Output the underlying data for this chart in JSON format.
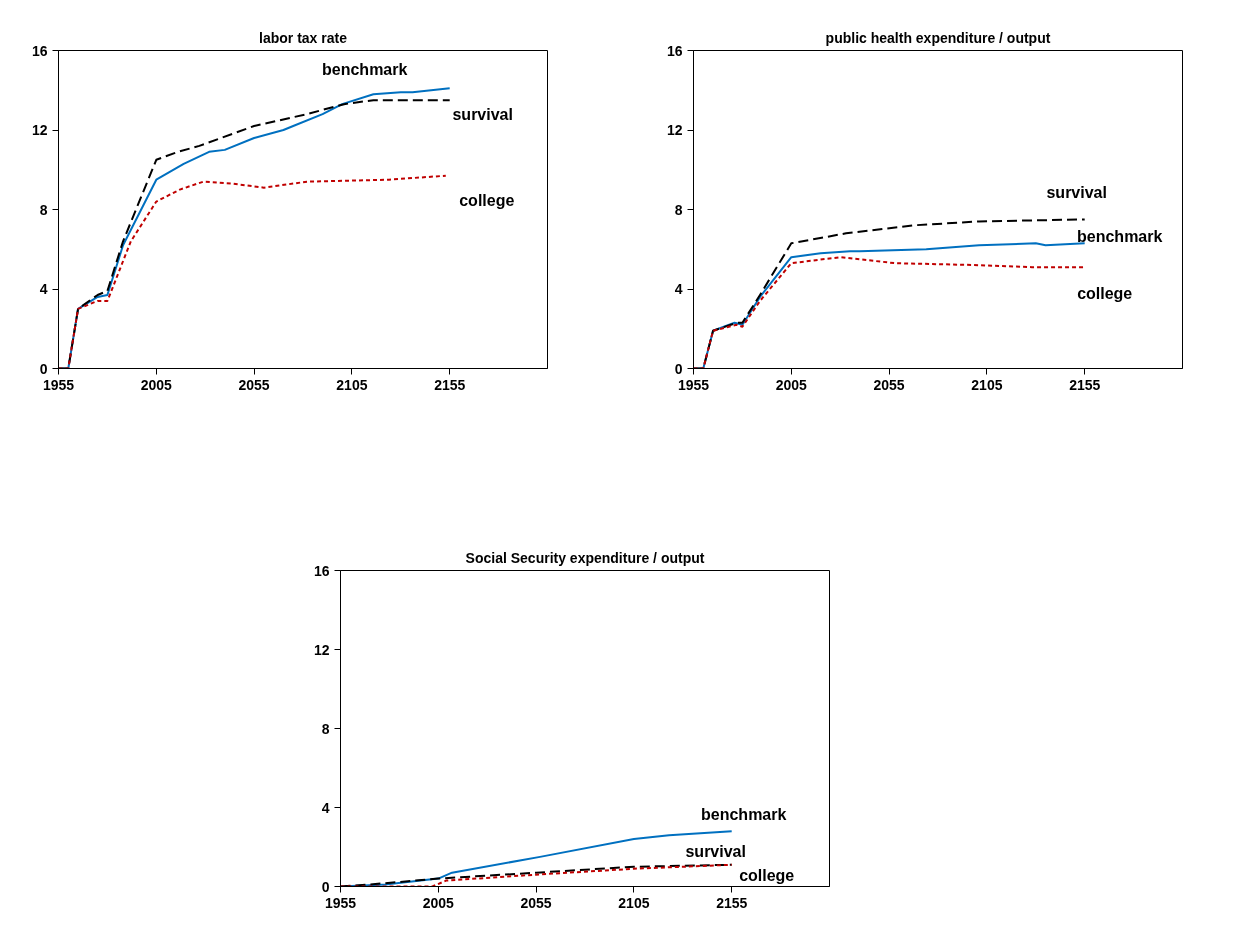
{
  "chart_data": [
    {
      "type": "line",
      "title": "labor tax rate",
      "xlim": [
        1955,
        2205
      ],
      "xticks": [
        1955,
        2005,
        2055,
        2105,
        2155
      ],
      "ylim": [
        0,
        16
      ],
      "yticks": [
        0,
        4,
        8,
        12,
        16
      ],
      "grid": false,
      "legend": false,
      "series": [
        {
          "name": "benchmark",
          "color": "#0070c0",
          "line_style": "solid",
          "x": [
            1955,
            1960,
            1965,
            1975,
            1980,
            1988,
            2005,
            2019,
            2032,
            2040,
            2055,
            2070,
            2075,
            2090,
            2100,
            2116,
            2130,
            2136,
            2155
          ],
          "values": [
            0,
            0,
            3.0,
            3.6,
            3.7,
            6.2,
            9.5,
            10.3,
            10.9,
            11.0,
            11.6,
            12.0,
            12.2,
            12.8,
            13.3,
            13.8,
            13.9,
            13.9,
            14.1
          ]
        },
        {
          "name": "survival",
          "color": "#000000",
          "line_style": "dashed",
          "x": [
            1955,
            1960,
            1965,
            1975,
            1980,
            1988,
            2005,
            2016,
            2027,
            2055,
            2082,
            2101,
            2116,
            2155
          ],
          "values": [
            0,
            0,
            3.0,
            3.7,
            3.9,
            6.4,
            10.5,
            10.9,
            11.2,
            12.2,
            12.8,
            13.3,
            13.5,
            13.5
          ]
        },
        {
          "name": "college",
          "color": "#c00000",
          "line_style": "dotted",
          "x": [
            1955,
            1960,
            1965,
            1975,
            1980,
            1992,
            2005,
            2017,
            2029,
            2044,
            2060,
            2082,
            2124,
            2153
          ],
          "values": [
            0,
            0,
            3.0,
            3.4,
            3.4,
            6.4,
            8.4,
            9.0,
            9.4,
            9.3,
            9.1,
            9.4,
            9.5,
            9.7
          ]
        }
      ]
    },
    {
      "type": "line",
      "title": "public health expenditure / output",
      "xlim": [
        1955,
        2205
      ],
      "xticks": [
        1955,
        2005,
        2055,
        2105,
        2155
      ],
      "ylim": [
        0,
        16
      ],
      "yticks": [
        0,
        4,
        8,
        12,
        16
      ],
      "grid": false,
      "legend": false,
      "series": [
        {
          "name": "benchmark",
          "color": "#0070c0",
          "line_style": "solid",
          "x": [
            1955,
            1960,
            1965,
            1976,
            1980,
            1989,
            2005,
            2020,
            2035,
            2040,
            2074,
            2101,
            2130,
            2135,
            2155
          ],
          "values": [
            0,
            0,
            1.9,
            2.3,
            2.2,
            3.6,
            5.6,
            5.8,
            5.9,
            5.9,
            6.0,
            6.2,
            6.3,
            6.2,
            6.3
          ]
        },
        {
          "name": "survival",
          "color": "#000000",
          "line_style": "dashed",
          "x": [
            1955,
            1960,
            1965,
            1977,
            1980,
            1989,
            2005,
            2033,
            2067,
            2101,
            2155
          ],
          "values": [
            0,
            0,
            1.9,
            2.3,
            2.3,
            3.7,
            6.3,
            6.8,
            7.2,
            7.4,
            7.5
          ]
        },
        {
          "name": "college",
          "color": "#c00000",
          "line_style": "dotted",
          "x": [
            1955,
            1960,
            1965,
            1977,
            1980,
            1989,
            2005,
            2030,
            2058,
            2101,
            2128,
            2155
          ],
          "values": [
            0,
            0,
            1.9,
            2.2,
            2.1,
            3.4,
            5.3,
            5.6,
            5.3,
            5.2,
            5.1,
            5.1
          ]
        }
      ]
    },
    {
      "type": "line",
      "title": "Social Security expenditure / output",
      "xlim": [
        1955,
        2205
      ],
      "xticks": [
        1955,
        2005,
        2055,
        2105,
        2155
      ],
      "ylim": [
        0,
        16
      ],
      "yticks": [
        0,
        4,
        8,
        12,
        16
      ],
      "grid": false,
      "legend": false,
      "series": [
        {
          "name": "benchmark",
          "color": "#0070c0",
          "line_style": "solid",
          "x": [
            1955,
            1978,
            2005,
            2012,
            2057,
            2105,
            2123,
            2155
          ],
          "values": [
            0,
            0.1,
            0.4,
            0.7,
            1.5,
            2.4,
            2.6,
            2.8
          ]
        },
        {
          "name": "survival",
          "color": "#000000",
          "line_style": "dashed",
          "x": [
            1955,
            1970,
            2005,
            2055,
            2105,
            2155
          ],
          "values": [
            0,
            0.1,
            0.4,
            0.7,
            1.0,
            1.1
          ]
        },
        {
          "name": "college",
          "color": "#c00000",
          "line_style": "dotted",
          "x": [
            1955,
            2002,
            2009,
            2055,
            2105,
            2155
          ],
          "values": [
            0,
            0,
            0.3,
            0.6,
            0.9,
            1.1
          ]
        }
      ]
    }
  ]
}
